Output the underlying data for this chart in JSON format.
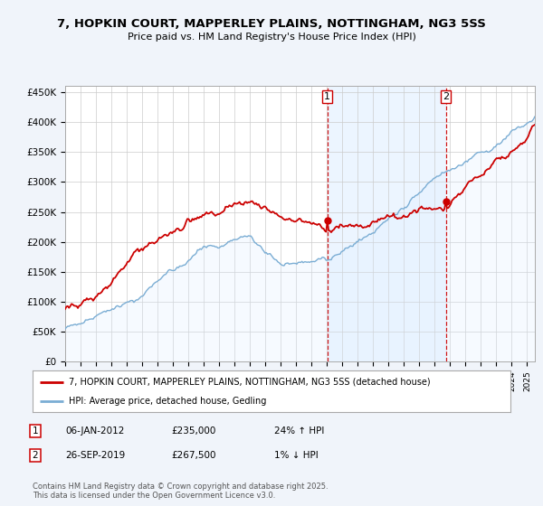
{
  "title": "7, HOPKIN COURT, MAPPERLEY PLAINS, NOTTINGHAM, NG3 5SS",
  "subtitle": "Price paid vs. HM Land Registry's House Price Index (HPI)",
  "ylim": [
    0,
    460000
  ],
  "yticks": [
    0,
    50000,
    100000,
    150000,
    200000,
    250000,
    300000,
    350000,
    400000,
    450000
  ],
  "ytick_labels": [
    "£0",
    "£50K",
    "£100K",
    "£150K",
    "£200K",
    "£250K",
    "£300K",
    "£350K",
    "£400K",
    "£450K"
  ],
  "sale1_date": "06-JAN-2012",
  "sale1_price": 235000,
  "sale1_hpi": "24% ↑ HPI",
  "sale1_x": 2012.03,
  "sale2_date": "26-SEP-2019",
  "sale2_price": 267500,
  "sale2_hpi": "1% ↓ HPI",
  "sale2_x": 2019.73,
  "legend_label1": "7, HOPKIN COURT, MAPPERLEY PLAINS, NOTTINGHAM, NG3 5SS (detached house)",
  "legend_label2": "HPI: Average price, detached house, Gedling",
  "footer": "Contains HM Land Registry data © Crown copyright and database right 2025.\nThis data is licensed under the Open Government Licence v3.0.",
  "property_color": "#cc0000",
  "hpi_color": "#7aadd4",
  "hpi_fill_color": "#ddeeff",
  "background_color": "#f0f4fa",
  "plot_bg": "#ffffff",
  "grid_color": "#cccccc"
}
